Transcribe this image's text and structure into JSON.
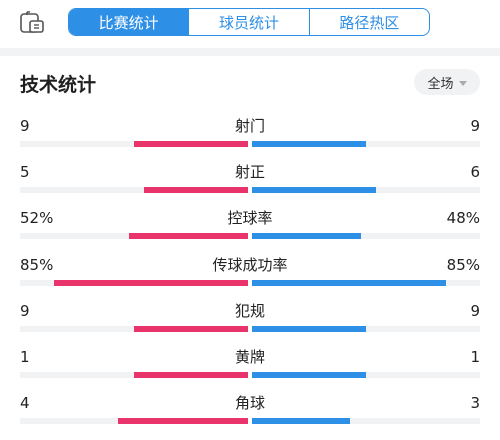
{
  "colors": {
    "accent": "#2e8fe6",
    "home": "#e8336b",
    "away": "#2e8fe6",
    "track": "#f1f2f4"
  },
  "header": {
    "icon": "match-board-icon",
    "tabs": [
      {
        "label": "比赛统计",
        "active": true
      },
      {
        "label": "球员统计",
        "active": false
      },
      {
        "label": "路径热区",
        "active": false
      }
    ]
  },
  "section": {
    "title": "技术统计",
    "filter_label": "全场"
  },
  "stats": [
    {
      "label": "射门",
      "left": "9",
      "right": "9",
      "left_share": 0.5,
      "right_share": 0.5
    },
    {
      "label": "射正",
      "left": "5",
      "right": "6",
      "left_share": 0.455,
      "right_share": 0.545
    },
    {
      "label": "控球率",
      "left": "52%",
      "right": "48%",
      "left_share": 0.52,
      "right_share": 0.48
    },
    {
      "label": "传球成功率",
      "left": "85%",
      "right": "85%",
      "left_share": 0.85,
      "right_share": 0.85
    },
    {
      "label": "犯规",
      "left": "9",
      "right": "9",
      "left_share": 0.5,
      "right_share": 0.5
    },
    {
      "label": "黄牌",
      "left": "1",
      "right": "1",
      "left_share": 0.5,
      "right_share": 0.5
    },
    {
      "label": "角球",
      "left": "4",
      "right": "3",
      "left_share": 0.571,
      "right_share": 0.429
    }
  ]
}
